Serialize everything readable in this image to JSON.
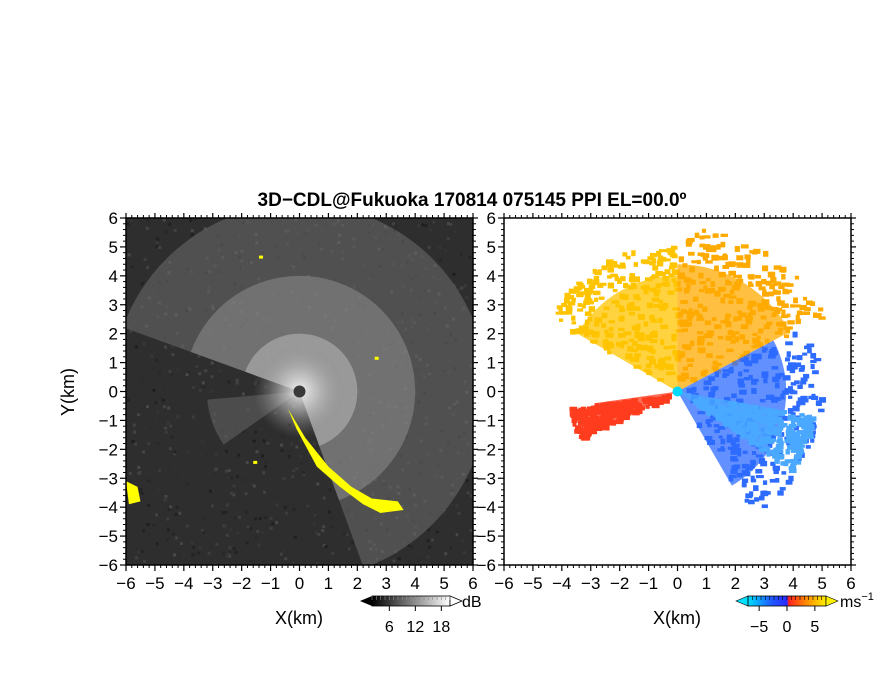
{
  "title": "3D−CDL@Fukuoka 170814 075145 PPI EL=00.0º",
  "chart_data": [
    {
      "type": "heatmap",
      "panel": "left",
      "quantity_unit": "dB",
      "xlabel": "X(km)",
      "ylabel": "Y(km)",
      "xlim": [
        -6,
        6
      ],
      "ylim": [
        -6,
        6
      ],
      "xticks": [
        "−6",
        "−5",
        "−4",
        "−3",
        "−2",
        "−1",
        "0",
        "1",
        "2",
        "3",
        "4",
        "5",
        "6"
      ],
      "yticks": [
        "−6",
        "−5",
        "−4",
        "−3",
        "−2",
        "−1",
        "0",
        "1",
        "2",
        "3",
        "4",
        "5",
        "6"
      ],
      "colorbar": {
        "unit": "dB",
        "ticks": [
          "6",
          "12",
          "18"
        ],
        "tick_values": [
          6,
          12,
          18
        ],
        "range": [
          2,
          20
        ],
        "colormap": "grayscale"
      },
      "background_color": "#2e2e2e",
      "highlight_color": "#ffff00",
      "highlight_regions": [
        {
          "label": "yellow band SE",
          "points": [
            [
              -0.4,
              -0.6
            ],
            [
              0.2,
              -1.6
            ],
            [
              1.0,
              -2.6
            ],
            [
              1.8,
              -3.3
            ],
            [
              2.5,
              -3.7
            ],
            [
              3.4,
              -3.8
            ],
            [
              3.6,
              -4.1
            ],
            [
              2.8,
              -4.2
            ],
            [
              2.2,
              -3.9
            ],
            [
              1.4,
              -3.3
            ],
            [
              0.6,
              -2.6
            ],
            [
              -0.1,
              -1.3
            ]
          ]
        },
        {
          "label": "yellow W edge",
          "points": [
            [
              -6.0,
              -3.1
            ],
            [
              -5.6,
              -3.3
            ],
            [
              -5.5,
              -3.8
            ],
            [
              -5.9,
              -3.9
            ]
          ]
        }
      ]
    },
    {
      "type": "heatmap",
      "panel": "right",
      "quantity_unit": "ms⁻¹",
      "xlabel": "X(km)",
      "ylabel": "",
      "xlim": [
        -6,
        6
      ],
      "ylim": [
        -6,
        6
      ],
      "xticks": [
        "−6",
        "−5",
        "−4",
        "−3",
        "−2",
        "−1",
        "0",
        "1",
        "2",
        "3",
        "4",
        "5",
        "6"
      ],
      "yticks": [
        "−6",
        "−5",
        "−4",
        "−3",
        "−2",
        "−1",
        "0",
        "1",
        "2",
        "3",
        "4",
        "5",
        "6"
      ],
      "colorbar": {
        "unit": "ms",
        "unit_exponent": "−1",
        "ticks": [
          "−5",
          "0",
          "5"
        ],
        "tick_values": [
          -5,
          0,
          5
        ],
        "range": [
          -7,
          7
        ],
        "colormap": "cyan-blue-red-orange-yellow"
      },
      "sectors": [
        {
          "label": "NW positive",
          "color": "#ffc400",
          "az_from": 300,
          "az_to": 360,
          "r_max": 5.0
        },
        {
          "label": "N positive",
          "color": "#ffaa00",
          "az_from": 0,
          "az_to": 62,
          "r_max": 5.5
        },
        {
          "label": "E negative",
          "color": "#2e6bff",
          "az_from": 62,
          "az_to": 150,
          "r_max": 4.7
        },
        {
          "label": "SE negative",
          "color": "#4aa8ff",
          "az_from": 100,
          "az_to": 125,
          "r_max": 4.5
        },
        {
          "label": "SW folded",
          "color": "#ff3c1e",
          "az_from": 245,
          "az_to": 262,
          "r_max": 3.6
        }
      ]
    }
  ]
}
